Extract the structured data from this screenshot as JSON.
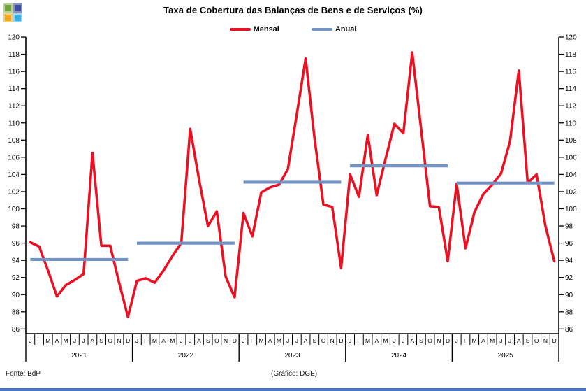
{
  "logo": {
    "squares": [
      {
        "name": "green",
        "color": "#6fa33c",
        "border": "#b7d489"
      },
      {
        "name": "indigo",
        "color": "#3c4f9e",
        "border": "#8291cc"
      },
      {
        "name": "amber",
        "color": "#f2a71b",
        "border": "#f8d07a"
      },
      {
        "name": "cyan",
        "color": "#33ace0",
        "border": "#99d6f0"
      }
    ]
  },
  "footer": {
    "source": "Fonte: BdP",
    "credit": "(Gráfico: DGE)"
  },
  "accents": {
    "bottom_bar": "#4472c4",
    "axis_color": "#000000",
    "text_color": "#000000"
  },
  "chart_data": {
    "type": "line",
    "title": "Taxa de Cobertura das Balanças de Bens e de Serviços (%)",
    "legend_position": "top",
    "y_axis": {
      "min": 86,
      "max": 120,
      "step": 2,
      "labels_both_sides": true,
      "grid": false
    },
    "x_axis": {
      "month_letters": [
        "J",
        "F",
        "M",
        "A",
        "M",
        "J",
        "J",
        "A",
        "S",
        "O",
        "N",
        "D"
      ],
      "years": [
        "2021",
        "2022",
        "2023",
        "2024",
        "2025"
      ],
      "start": "2021-01",
      "end": "2025-12"
    },
    "series": [
      {
        "name": "Mensal",
        "color": "#e81224",
        "style": "monthly-line",
        "values": [
          96.1,
          95.6,
          92.8,
          89.8,
          91.1,
          91.7,
          92.4,
          106.5,
          95.7,
          95.7,
          91.4,
          87.4,
          91.6,
          91.9,
          91.4,
          92.8,
          94.5,
          96.0,
          109.3,
          103.4,
          98.0,
          99.7,
          92.1,
          89.7,
          99.5,
          96.8,
          101.9,
          102.5,
          102.8,
          104.6,
          111.0,
          117.5,
          108.2,
          100.5,
          100.2,
          93.1,
          104.0,
          101.4,
          108.6,
          101.6,
          105.8,
          109.9,
          108.8,
          118.2,
          109.3,
          100.3,
          100.2,
          93.9,
          102.9,
          95.4,
          99.6,
          101.7,
          102.8,
          104.1,
          107.8,
          116.1,
          103.0,
          104.0,
          98.0,
          93.9
        ]
      },
      {
        "name": "Anual",
        "color": "#7494c7",
        "style": "yearly-horizontal-segments",
        "values": [
          94.1,
          96.0,
          103.1,
          105.0,
          103.0
        ]
      }
    ]
  }
}
